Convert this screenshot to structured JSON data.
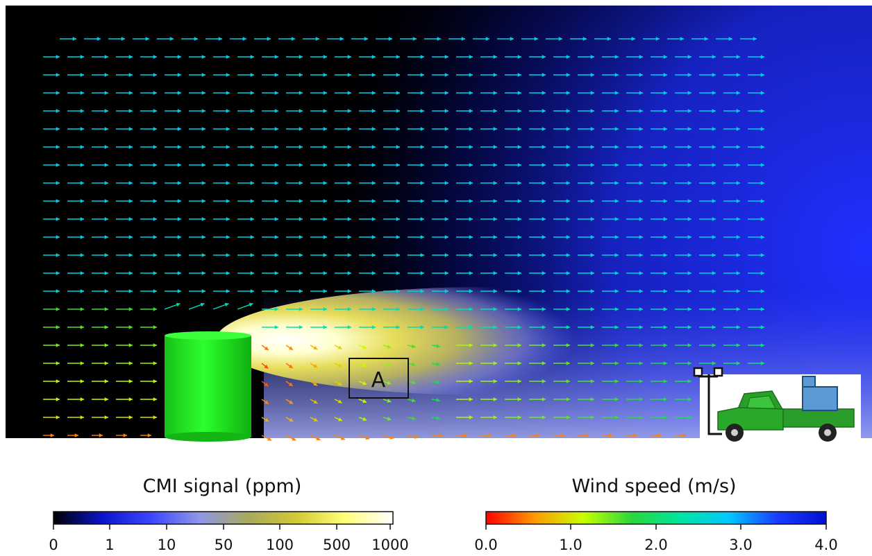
{
  "box_label": "A",
  "legend_concentration": {
    "title": "CMI signal (ppm)",
    "ticks": [
      "0",
      "1",
      "10",
      "50",
      "100",
      "500",
      "1000"
    ],
    "colors": [
      "#000000",
      "#0a14c8",
      "#3b46ff",
      "#8f96e6",
      "#a8a860",
      "#d2c832",
      "#ffff7a",
      "#ffffff"
    ]
  },
  "legend_wind": {
    "title": "Wind speed (m/s)",
    "ticks": [
      "0.0",
      "1.0",
      "2.0",
      "3.0",
      "4.0"
    ],
    "colors": [
      "#ff0000",
      "#ff9a00",
      "#c8ff00",
      "#2bd63c",
      "#00e5a0",
      "#00c8ff",
      "#1a3cff",
      "#0010d0"
    ]
  },
  "colors": {
    "cylinder": "#22ee22",
    "truck": "#2a9d2a",
    "sensor_box": "#5b9bd5"
  }
}
